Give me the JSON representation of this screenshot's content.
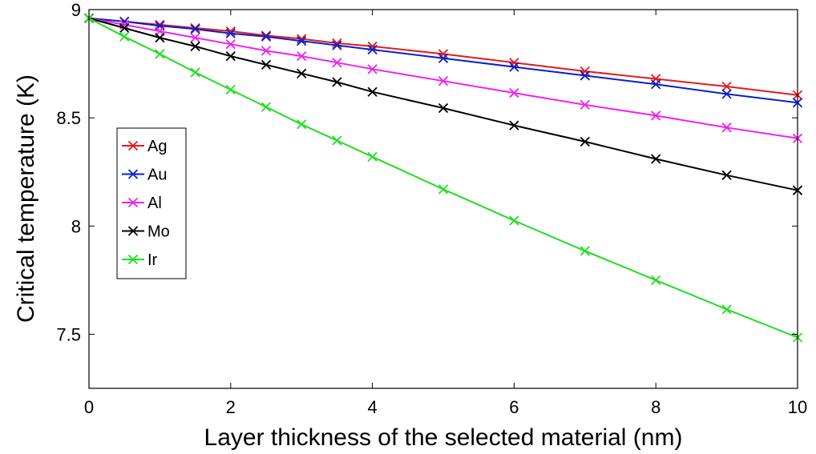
{
  "chart_data": {
    "type": "line",
    "title": "",
    "xlabel": "Layer thickness of the selected material (nm)",
    "ylabel": "Critical temperature (K)",
    "xlim": [
      0,
      10
    ],
    "ylim": [
      7.25,
      9.0
    ],
    "xticks": [
      0,
      2,
      4,
      6,
      8,
      10
    ],
    "yticks": [
      7.5,
      8,
      8.5,
      9
    ],
    "xtick_labels": [
      "0",
      "2",
      "4",
      "6",
      "8",
      "10"
    ],
    "ytick_labels": [
      "7.5",
      "8",
      "8.5",
      "9"
    ],
    "grid": false,
    "legend_position": "left-middle",
    "marker": "x",
    "series": [
      {
        "name": "Ag",
        "color": "#e41a1c",
        "points": [
          [
            0,
            8.96
          ],
          [
            0.5,
            8.945
          ],
          [
            1,
            8.93
          ],
          [
            1.5,
            8.915
          ],
          [
            2,
            8.9
          ],
          [
            2.5,
            8.88
          ],
          [
            3,
            8.865
          ],
          [
            3.5,
            8.845
          ],
          [
            4,
            8.83
          ],
          [
            5,
            8.795
          ],
          [
            6,
            8.755
          ],
          [
            7,
            8.715
          ],
          [
            8,
            8.68
          ],
          [
            9,
            8.645
          ],
          [
            10,
            8.605
          ]
        ]
      },
      {
        "name": "Au",
        "color": "#0a1fcc",
        "points": [
          [
            0,
            8.96
          ],
          [
            0.5,
            8.945
          ],
          [
            1,
            8.925
          ],
          [
            1.5,
            8.91
          ],
          [
            2,
            8.89
          ],
          [
            2.5,
            8.875
          ],
          [
            3,
            8.855
          ],
          [
            3.5,
            8.835
          ],
          [
            4,
            8.815
          ],
          [
            5,
            8.775
          ],
          [
            6,
            8.735
          ],
          [
            7,
            8.695
          ],
          [
            8,
            8.655
          ],
          [
            9,
            8.61
          ],
          [
            10,
            8.57
          ]
        ]
      },
      {
        "name": "Al",
        "color": "#ee22ee",
        "points": [
          [
            0,
            8.96
          ],
          [
            0.5,
            8.93
          ],
          [
            1,
            8.9
          ],
          [
            1.5,
            8.87
          ],
          [
            2,
            8.84
          ],
          [
            2.5,
            8.81
          ],
          [
            3,
            8.785
          ],
          [
            3.5,
            8.755
          ],
          [
            4,
            8.725
          ],
          [
            5,
            8.67
          ],
          [
            6,
            8.615
          ],
          [
            7,
            8.56
          ],
          [
            8,
            8.51
          ],
          [
            9,
            8.455
          ],
          [
            10,
            8.405
          ]
        ]
      },
      {
        "name": "Mo",
        "color": "#000000",
        "points": [
          [
            0,
            8.96
          ],
          [
            0.5,
            8.915
          ],
          [
            1,
            8.87
          ],
          [
            1.5,
            8.83
          ],
          [
            2,
            8.785
          ],
          [
            2.5,
            8.745
          ],
          [
            3,
            8.705
          ],
          [
            3.5,
            8.665
          ],
          [
            4,
            8.62
          ],
          [
            5,
            8.545
          ],
          [
            6,
            8.465
          ],
          [
            7,
            8.39
          ],
          [
            8,
            8.31
          ],
          [
            9,
            8.235
          ],
          [
            10,
            8.165
          ]
        ]
      },
      {
        "name": "Ir",
        "color": "#22dd22",
        "points": [
          [
            0,
            8.96
          ],
          [
            0.5,
            8.875
          ],
          [
            1,
            8.795
          ],
          [
            1.5,
            8.71
          ],
          [
            2,
            8.63
          ],
          [
            2.5,
            8.55
          ],
          [
            3,
            8.47
          ],
          [
            3.5,
            8.395
          ],
          [
            4,
            8.32
          ],
          [
            5,
            8.17
          ],
          [
            6,
            8.025
          ],
          [
            7,
            7.885
          ],
          [
            8,
            7.75
          ],
          [
            9,
            7.615
          ],
          [
            10,
            7.485
          ]
        ]
      }
    ]
  }
}
